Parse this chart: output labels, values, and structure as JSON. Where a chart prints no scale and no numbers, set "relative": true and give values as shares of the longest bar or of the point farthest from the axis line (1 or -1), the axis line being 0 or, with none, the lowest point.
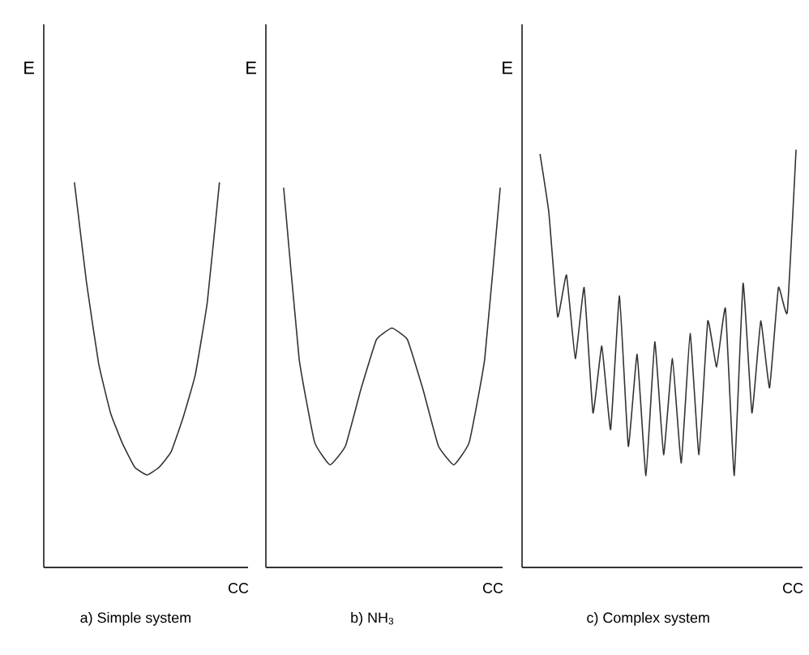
{
  "chart_data": [
    {
      "type": "line",
      "title": "a) Simple system",
      "xlabel": "CC",
      "ylabel": "E",
      "relative": true,
      "color": "#333333",
      "categories": [
        null,
        null,
        null,
        null,
        null,
        null,
        null,
        null,
        null,
        null,
        null,
        null,
        null
      ],
      "values": [
        1.0,
        0.74,
        0.53,
        0.4,
        0.32,
        0.26,
        0.24,
        0.26,
        0.3,
        0.39,
        0.5,
        0.69,
        1.0
      ]
    },
    {
      "type": "line",
      "title": "b) NH$_{3}$",
      "xlabel": "CC",
      "ylabel": "E",
      "relative": true,
      "color": "#333333",
      "categories": [
        null,
        null,
        null,
        null,
        null,
        null,
        null,
        null,
        null,
        null,
        null,
        null,
        null,
        null,
        null
      ],
      "values": [
        1.0,
        0.55,
        0.33,
        0.27,
        0.32,
        0.47,
        0.6,
        0.63,
        0.6,
        0.47,
        0.32,
        0.27,
        0.33,
        0.55,
        1.0
      ]
    },
    {
      "type": "line",
      "title": "c) Complex system",
      "xlabel": "CC",
      "ylabel": "E",
      "relative": true,
      "color": "#333333",
      "categories": [
        null,
        null,
        null,
        null,
        null,
        null,
        null,
        null,
        null,
        null,
        null,
        null,
        null,
        null,
        null,
        null,
        null,
        null,
        null,
        null,
        null,
        null,
        null,
        null,
        null,
        null,
        null,
        null,
        null,
        null
      ],
      "values": [
        0.99,
        0.85,
        0.6,
        0.7,
        0.5,
        0.67,
        0.37,
        0.53,
        0.33,
        0.65,
        0.29,
        0.51,
        0.22,
        0.54,
        0.27,
        0.5,
        0.25,
        0.56,
        0.27,
        0.59,
        0.48,
        0.62,
        0.22,
        0.68,
        0.37,
        0.59,
        0.43,
        0.67,
        0.61,
        1.0
      ]
    }
  ]
}
